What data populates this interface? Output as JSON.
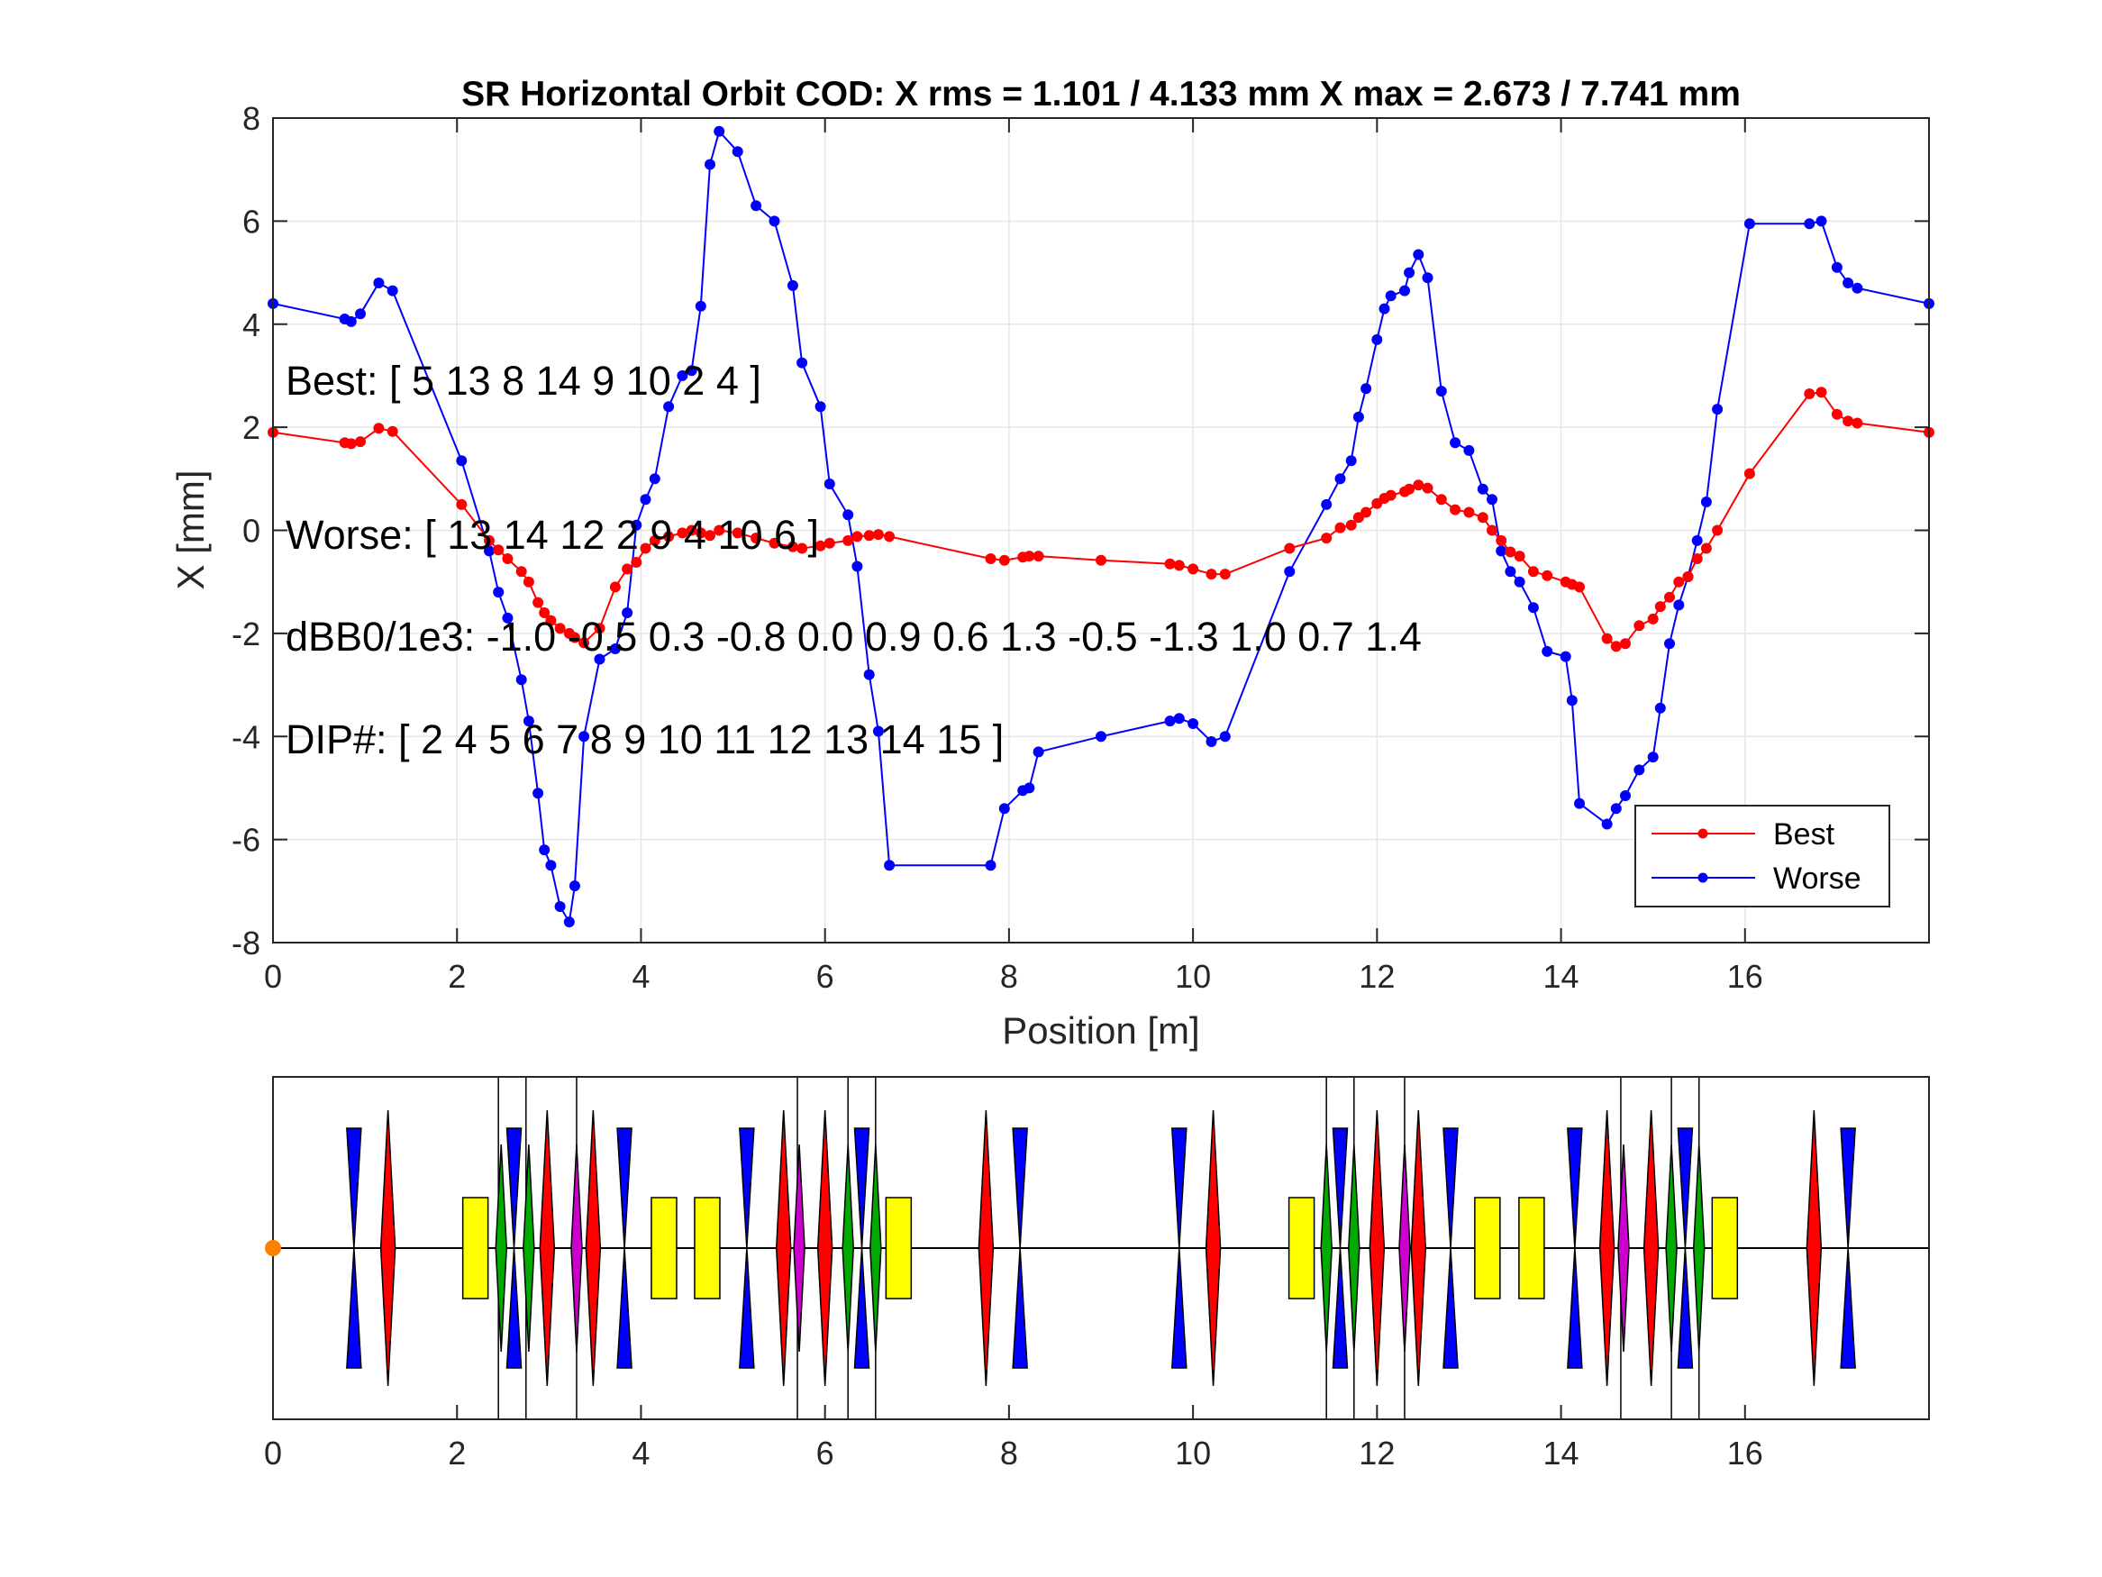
{
  "colors": {
    "best": "#ff0000",
    "worse": "#0000ff",
    "defocus_quad": "#0000ff",
    "focus_quad": "#ff0000",
    "sextupole_green": "#00aa00",
    "sextupole_magenta": "#cc00cc",
    "dipole": "#ffff00",
    "origin_marker": "#ff8000",
    "grid": "#e6e6e6"
  },
  "chart_data": [
    {
      "type": "line",
      "title": "SR Horizontal Orbit COD: X rms  = 1.101 / 4.133 mm  X max = 2.673 / 7.741 mm",
      "xlabel": "Position [m]",
      "ylabel": "X [mm]",
      "xlim": [
        0,
        18
      ],
      "ylim": [
        -8,
        8
      ],
      "xticks": [
        "0",
        "2",
        "4",
        "6",
        "8",
        "10",
        "12",
        "14",
        "16"
      ],
      "yticks": [
        "-8",
        "-6",
        "-4",
        "-2",
        "0",
        "2",
        "4",
        "6",
        "8"
      ],
      "grid": true,
      "legend_position": "bottom-right",
      "annotations": [
        "Best: [ 5  13   8  14   9  10   2   4 ]",
        "Worse: [ 13  14  12   2   9   4  10   6 ]",
        "dBB0/1e3: -1.0 -0.5  0.3 -0.8  0.0  0.9  0.6  1.3 -0.5 -1.3  1.0  0.7  1.4",
        "DIP#: [ 2   4   5   6   7   8   9  10  11  12  13  14  15 ]"
      ],
      "series": [
        {
          "name": "Best",
          "x": [
            0,
            0.78,
            0.85,
            0.95,
            1.15,
            1.3,
            2.05,
            2.35,
            2.45,
            2.55,
            2.7,
            2.78,
            2.88,
            2.95,
            3.02,
            3.12,
            3.22,
            3.28,
            3.38,
            3.55,
            3.72,
            3.85,
            3.95,
            4.05,
            4.15,
            4.3,
            4.45,
            4.55,
            4.65,
            4.75,
            4.85,
            5.05,
            5.25,
            5.45,
            5.65,
            5.75,
            5.95,
            6.05,
            6.25,
            6.35,
            6.48,
            6.58,
            6.7,
            7.8,
            7.95,
            8.15,
            8.22,
            8.32,
            9.0,
            9.75,
            9.85,
            10.0,
            10.2,
            10.35,
            11.05,
            11.45,
            11.6,
            11.72,
            11.8,
            11.88,
            12.0,
            12.08,
            12.15,
            12.3,
            12.35,
            12.45,
            12.55,
            12.7,
            12.85,
            13.0,
            13.15,
            13.25,
            13.35,
            13.45,
            13.55,
            13.7,
            13.85,
            14.05,
            14.12,
            14.2,
            14.5,
            14.6,
            14.7,
            14.85,
            15.0,
            15.08,
            15.18,
            15.28,
            15.38,
            15.48,
            15.58,
            15.7,
            16.05,
            16.7,
            16.83,
            17.0,
            17.12,
            17.22,
            18
          ],
          "values": [
            1.9,
            1.7,
            1.68,
            1.72,
            1.98,
            1.92,
            0.5,
            -0.2,
            -0.38,
            -0.55,
            -0.8,
            -1.0,
            -1.4,
            -1.6,
            -1.75,
            -1.9,
            -2.0,
            -2.08,
            -2.18,
            -1.9,
            -1.1,
            -0.75,
            -0.62,
            -0.35,
            -0.2,
            -0.12,
            -0.05,
            0.0,
            -0.05,
            -0.1,
            0.0,
            -0.05,
            -0.15,
            -0.25,
            -0.32,
            -0.35,
            -0.3,
            -0.25,
            -0.2,
            -0.12,
            -0.1,
            -0.08,
            -0.12,
            -0.55,
            -0.58,
            -0.52,
            -0.5,
            -0.5,
            -0.58,
            -0.65,
            -0.68,
            -0.75,
            -0.85,
            -0.85,
            -0.35,
            -0.15,
            0.05,
            0.1,
            0.25,
            0.35,
            0.52,
            0.62,
            0.68,
            0.75,
            0.8,
            0.88,
            0.82,
            0.6,
            0.4,
            0.35,
            0.25,
            0.0,
            -0.2,
            -0.42,
            -0.5,
            -0.8,
            -0.88,
            -1.0,
            -1.05,
            -1.1,
            -2.1,
            -2.25,
            -2.2,
            -1.85,
            -1.72,
            -1.48,
            -1.3,
            -1.0,
            -0.9,
            -0.55,
            -0.35,
            0.0,
            1.1,
            2.65,
            2.68,
            2.25,
            2.12,
            2.08,
            1.9
          ]
        },
        {
          "name": "Worse",
          "x": [
            0,
            0.78,
            0.85,
            0.95,
            1.15,
            1.3,
            2.05,
            2.35,
            2.45,
            2.55,
            2.7,
            2.78,
            2.88,
            2.95,
            3.02,
            3.12,
            3.22,
            3.28,
            3.38,
            3.55,
            3.72,
            3.85,
            3.95,
            4.05,
            4.15,
            4.3,
            4.45,
            4.55,
            4.65,
            4.75,
            4.85,
            5.05,
            5.25,
            5.45,
            5.65,
            5.75,
            5.95,
            6.05,
            6.25,
            6.35,
            6.48,
            6.58,
            6.7,
            7.8,
            7.95,
            8.15,
            8.22,
            8.32,
            9.0,
            9.75,
            9.85,
            10.0,
            10.2,
            10.35,
            11.05,
            11.45,
            11.6,
            11.72,
            11.8,
            11.88,
            12.0,
            12.08,
            12.15,
            12.3,
            12.35,
            12.45,
            12.55,
            12.7,
            12.85,
            13.0,
            13.15,
            13.25,
            13.35,
            13.45,
            13.55,
            13.7,
            13.85,
            14.05,
            14.12,
            14.2,
            14.5,
            14.6,
            14.7,
            14.85,
            15.0,
            15.08,
            15.18,
            15.28,
            15.38,
            15.48,
            15.58,
            15.7,
            16.05,
            16.7,
            16.83,
            17.0,
            17.12,
            17.22,
            18
          ],
          "values": [
            4.4,
            4.1,
            4.05,
            4.2,
            4.8,
            4.65,
            1.35,
            -0.4,
            -1.2,
            -1.7,
            -2.9,
            -3.7,
            -5.1,
            -6.2,
            -6.5,
            -7.3,
            -7.6,
            -6.9,
            -4.0,
            -2.5,
            -2.3,
            -1.6,
            0.1,
            0.6,
            1.0,
            2.4,
            3.0,
            3.1,
            4.35,
            7.1,
            7.741,
            7.35,
            6.3,
            6.0,
            4.75,
            3.25,
            2.4,
            0.9,
            0.3,
            -0.7,
            -2.8,
            -3.9,
            -6.5,
            -6.5,
            -5.4,
            -5.05,
            -5.0,
            -4.3,
            -4.0,
            -3.7,
            -3.65,
            -3.75,
            -4.1,
            -4.0,
            -0.8,
            0.5,
            1.0,
            1.35,
            2.2,
            2.75,
            3.7,
            4.3,
            4.55,
            4.65,
            5.0,
            5.35,
            4.9,
            2.7,
            1.7,
            1.55,
            0.8,
            0.6,
            -0.4,
            -0.8,
            -1.0,
            -1.5,
            -2.35,
            -2.45,
            -3.3,
            -5.3,
            -5.7,
            -5.4,
            -5.15,
            -4.65,
            -4.4,
            -3.45,
            -2.2,
            -1.45,
            -0.9,
            -0.2,
            0.55,
            2.35,
            5.95,
            5.95,
            6.0,
            5.1,
            4.8,
            4.7,
            4.4
          ]
        }
      ]
    },
    {
      "type": "lattice",
      "xlim": [
        0,
        18
      ],
      "xticks": [
        "0",
        "2",
        "4",
        "6",
        "8",
        "10",
        "12",
        "14",
        "16"
      ],
      "origin_marker": 0,
      "vertical_lines": [
        2.45,
        2.75,
        3.3,
        5.7,
        6.25,
        6.55,
        11.45,
        11.75,
        12.3,
        14.65,
        15.2,
        15.5
      ],
      "elements": [
        {
          "kind": "quad-defocus",
          "s": 0.88
        },
        {
          "kind": "quad-focus",
          "s": 1.25
        },
        {
          "kind": "dipole",
          "s": 2.2
        },
        {
          "kind": "sext-green",
          "s": 2.48
        },
        {
          "kind": "quad-defocus",
          "s": 2.62
        },
        {
          "kind": "sext-green",
          "s": 2.78
        },
        {
          "kind": "quad-focus",
          "s": 2.98
        },
        {
          "kind": "sext-magenta",
          "s": 3.3
        },
        {
          "kind": "quad-focus",
          "s": 3.48
        },
        {
          "kind": "quad-defocus",
          "s": 3.82
        },
        {
          "kind": "dipole",
          "s": 4.25
        },
        {
          "kind": "dipole",
          "s": 4.72
        },
        {
          "kind": "quad-defocus",
          "s": 5.15
        },
        {
          "kind": "quad-focus",
          "s": 5.55
        },
        {
          "kind": "sext-magenta",
          "s": 5.72
        },
        {
          "kind": "quad-focus",
          "s": 6.0
        },
        {
          "kind": "sext-green",
          "s": 6.25
        },
        {
          "kind": "quad-defocus",
          "s": 6.4
        },
        {
          "kind": "sext-green",
          "s": 6.55
        },
        {
          "kind": "dipole",
          "s": 6.8
        },
        {
          "kind": "quad-focus",
          "s": 7.75
        },
        {
          "kind": "quad-defocus",
          "s": 8.12
        },
        {
          "kind": "quad-defocus",
          "s": 9.85
        },
        {
          "kind": "quad-focus",
          "s": 10.22
        },
        {
          "kind": "dipole",
          "s": 11.18
        },
        {
          "kind": "sext-green",
          "s": 11.45
        },
        {
          "kind": "quad-defocus",
          "s": 11.6
        },
        {
          "kind": "sext-green",
          "s": 11.75
        },
        {
          "kind": "quad-focus",
          "s": 12.0
        },
        {
          "kind": "sext-magenta",
          "s": 12.3
        },
        {
          "kind": "quad-focus",
          "s": 12.45
        },
        {
          "kind": "quad-defocus",
          "s": 12.8
        },
        {
          "kind": "dipole",
          "s": 13.2
        },
        {
          "kind": "dipole",
          "s": 13.68
        },
        {
          "kind": "quad-defocus",
          "s": 14.15
        },
        {
          "kind": "quad-focus",
          "s": 14.5
        },
        {
          "kind": "sext-magenta",
          "s": 14.68
        },
        {
          "kind": "quad-focus",
          "s": 14.98
        },
        {
          "kind": "sext-green",
          "s": 15.2
        },
        {
          "kind": "quad-defocus",
          "s": 15.35
        },
        {
          "kind": "sext-green",
          "s": 15.5
        },
        {
          "kind": "dipole",
          "s": 15.78
        },
        {
          "kind": "quad-focus",
          "s": 16.75
        },
        {
          "kind": "quad-defocus",
          "s": 17.12
        }
      ]
    }
  ]
}
